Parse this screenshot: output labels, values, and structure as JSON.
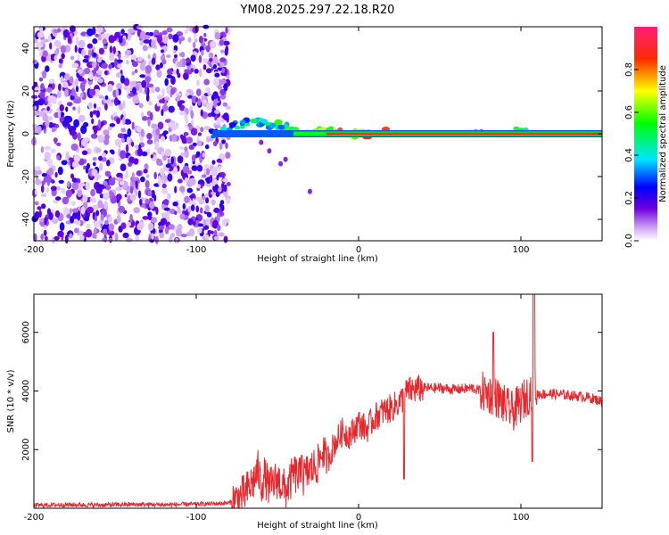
{
  "title": "YM08.2025.297.22.18.R20",
  "chart_data": [
    {
      "type": "heatmap",
      "name": "spectrogram",
      "xlabel": "Height of straight line (km)",
      "ylabel": "Frequency (Hz)",
      "xlim": [
        -200,
        150
      ],
      "ylim": [
        -50,
        50
      ],
      "x_ticks": [
        -200,
        -100,
        0,
        100
      ],
      "y_ticks": [
        -40,
        -20,
        0,
        20,
        40
      ],
      "colorbar": {
        "label": "Normalized spectral amplitude",
        "range": [
          0,
          1
        ],
        "ticks": [
          "0.0",
          "0.2",
          "0.4",
          "0.6",
          "0.8"
        ]
      },
      "noise_region_x": [
        -200,
        -80
      ],
      "signal_line_freq_hz": 0,
      "signal_track": [
        {
          "x": -88,
          "freq": 0,
          "amp": 0.35
        },
        {
          "x": -82,
          "freq": 2,
          "amp": 0.4
        },
        {
          "x": -76,
          "freq": 4,
          "amp": 0.45
        },
        {
          "x": -70,
          "freq": 5,
          "amp": 0.5
        },
        {
          "x": -64,
          "freq": 6,
          "amp": 0.55
        },
        {
          "x": -58,
          "freq": 5,
          "amp": 0.55
        },
        {
          "x": -52,
          "freq": 4,
          "amp": 0.6
        },
        {
          "x": -46,
          "freq": 3,
          "amp": 0.6
        },
        {
          "x": -40,
          "freq": 2,
          "amp": 0.65
        },
        {
          "x": -34,
          "freq": 1,
          "amp": 0.7
        },
        {
          "x": -28,
          "freq": 1,
          "amp": 0.7
        },
        {
          "x": -22,
          "freq": 1,
          "amp": 0.75
        },
        {
          "x": -16,
          "freq": 2,
          "amp": 0.8
        },
        {
          "x": -10,
          "freq": 1,
          "amp": 0.85
        },
        {
          "x": -4,
          "freq": 0,
          "amp": 0.9
        },
        {
          "x": 4,
          "freq": 0,
          "amp": 0.9
        },
        {
          "x": 18,
          "freq": 1,
          "amp": 0.85
        },
        {
          "x": 75,
          "freq": 1,
          "amp": 0.6
        },
        {
          "x": 100,
          "freq": 1,
          "amp": 0.6
        }
      ]
    },
    {
      "type": "line",
      "name": "snr",
      "xlabel": "Height of straight line (km)",
      "ylabel": "SNR (10 * v/v)",
      "xlim": [
        -200,
        150
      ],
      "ylim": [
        0,
        7300
      ],
      "x_ticks": [
        -200,
        -100,
        0,
        100
      ],
      "y_ticks": [
        2000,
        4000,
        6000
      ],
      "color": "#e8262b",
      "series": [
        {
          "name": "SNR",
          "x": [
            -200,
            -180,
            -160,
            -140,
            -120,
            -100,
            -90,
            -80,
            -75,
            -70,
            -65,
            -62,
            -60,
            -58,
            -55,
            -50,
            -45,
            -42,
            -40,
            -35,
            -30,
            -25,
            -22,
            -20,
            -18,
            -15,
            -10,
            -5,
            0,
            5,
            10,
            15,
            20,
            25,
            28,
            30,
            35,
            40,
            50,
            60,
            70,
            75,
            80,
            85,
            90,
            95,
            100,
            105,
            108,
            110,
            120,
            130,
            140,
            150
          ],
          "y": [
            100,
            120,
            110,
            130,
            120,
            140,
            150,
            180,
            300,
            500,
            900,
            1300,
            800,
            1100,
            700,
            1000,
            600,
            900,
            1200,
            1000,
            1300,
            1500,
            2000,
            1600,
            1800,
            2200,
            2600,
            2500,
            2900,
            2700,
            3100,
            3300,
            3400,
            3600,
            3800,
            4000,
            4050,
            4100,
            4100,
            4050,
            4100,
            4000,
            3900,
            3800,
            3500,
            3300,
            3600,
            3900,
            4200,
            3900,
            3900,
            3850,
            3800,
            3650
          ]
        }
      ]
    }
  ]
}
